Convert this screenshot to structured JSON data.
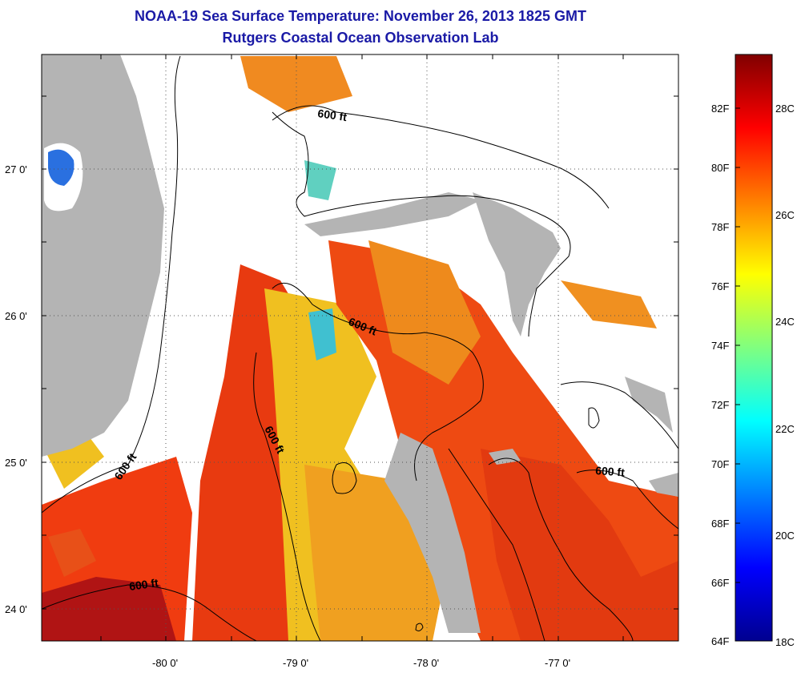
{
  "title": {
    "line1": "NOAA-19 Sea Surface Temperature:  November 26, 2013 1825 GMT",
    "line2": "Rutgers Coastal Ocean Observation Lab"
  },
  "map": {
    "lon_labels": [
      "-80 0'",
      "-79 0'",
      "-78 0'",
      "-77 0'"
    ],
    "lat_labels": [
      "27 0'",
      "26 0'",
      "25 0'",
      "24 0'"
    ],
    "contour_labels": [
      "600 ft",
      "600 ft",
      "600 ft",
      "600 ft",
      "600 ft",
      "600 ft"
    ],
    "colors": {
      "land": "#b4b4b4",
      "cloud": "#ffffff",
      "frame": "#000000"
    }
  },
  "colorbar": {
    "fahrenheit_labels": [
      "82F",
      "80F",
      "78F",
      "76F",
      "74F",
      "72F",
      "70F",
      "68F",
      "66F",
      "64F"
    ],
    "celsius_labels": [
      "28C",
      "26C",
      "24C",
      "22C",
      "20C",
      "18C"
    ],
    "min_celsius": 18,
    "max_celsius": 29.5
  }
}
